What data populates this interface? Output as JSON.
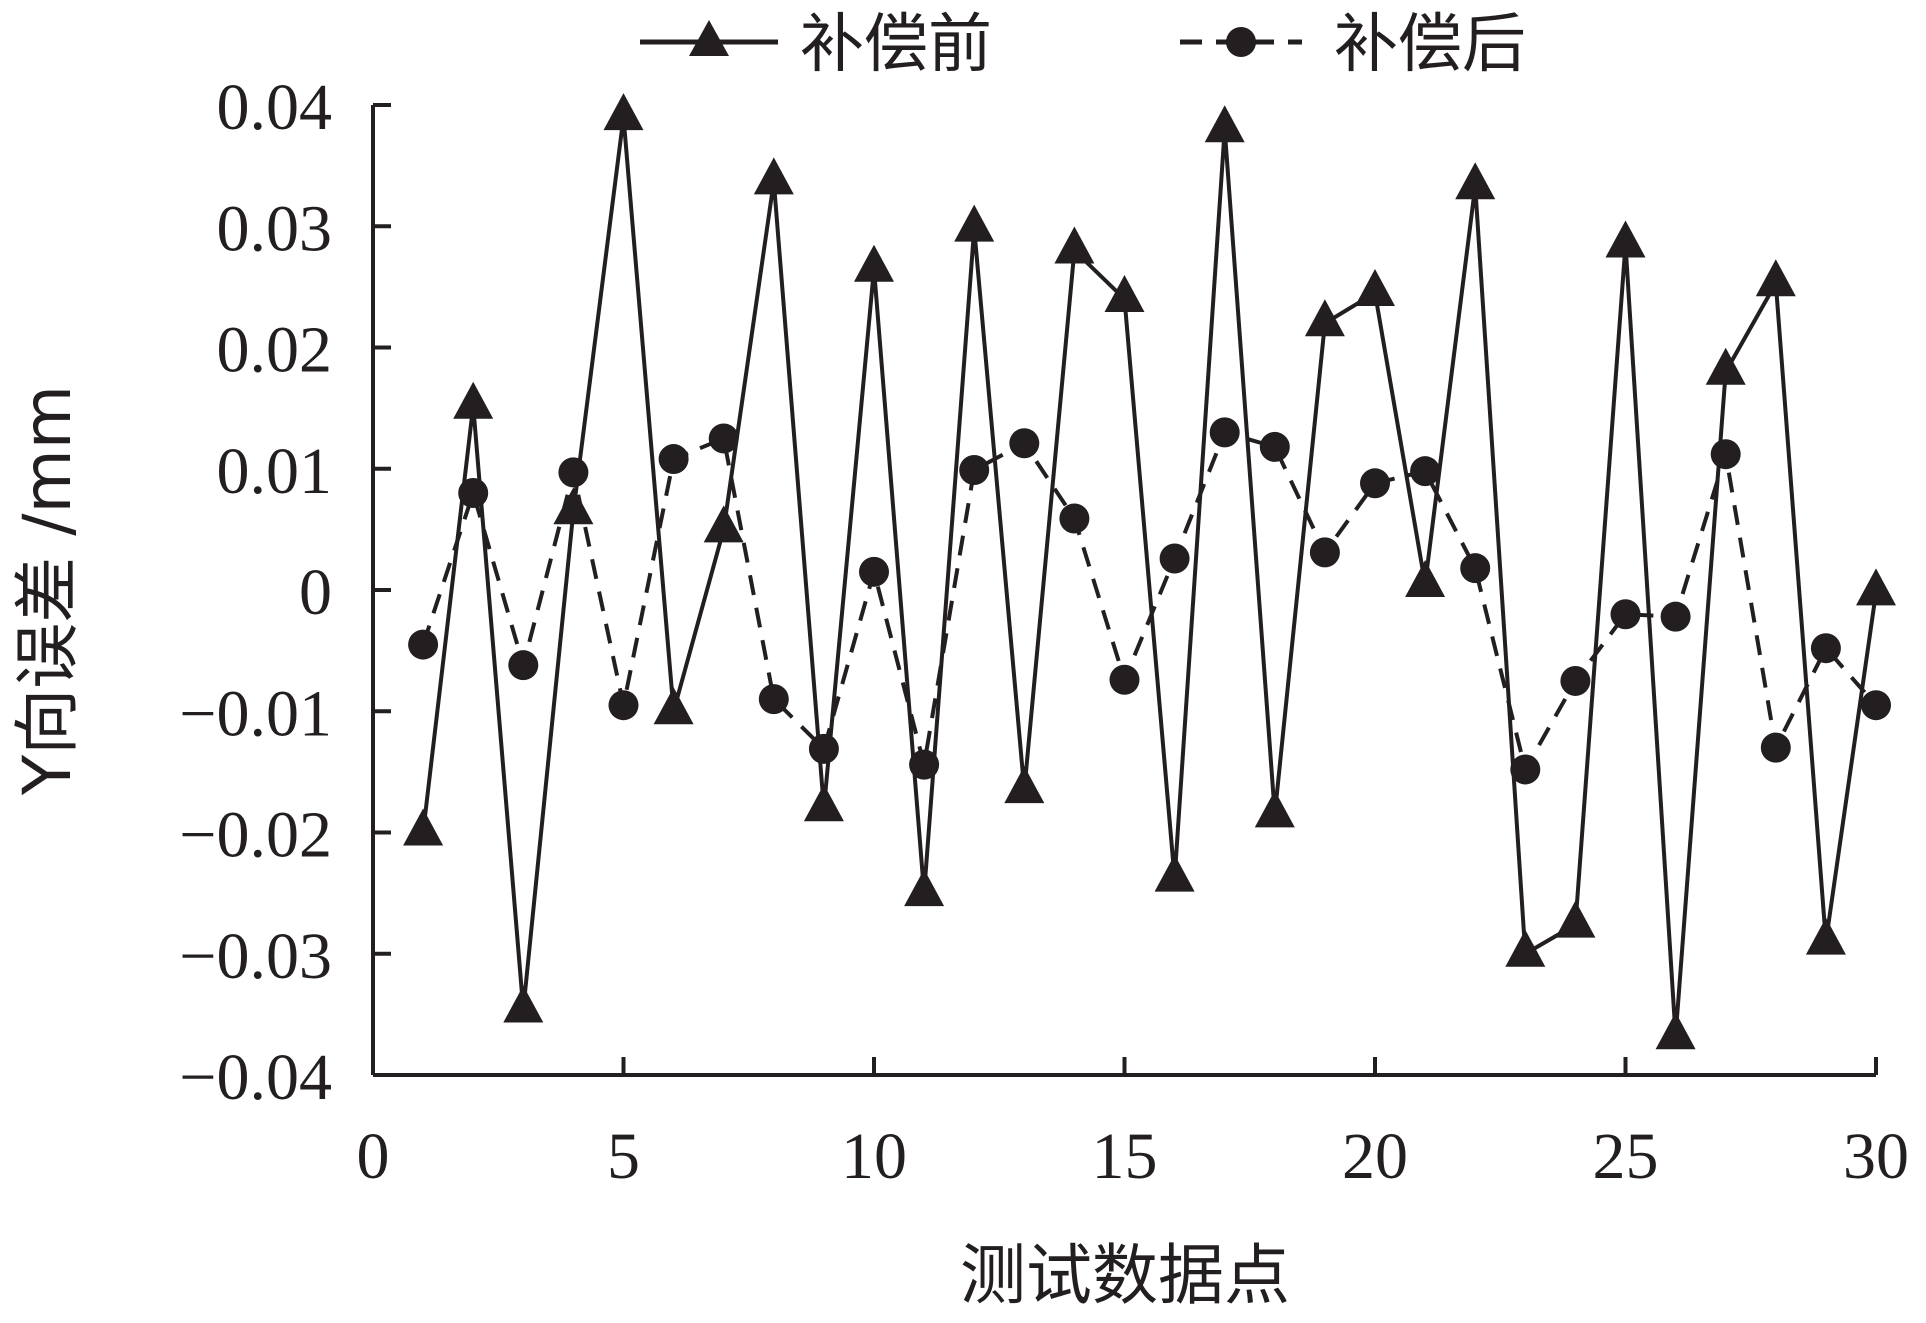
{
  "chart_data": {
    "type": "line",
    "xlabel": "测试数据点",
    "ylabel": "Y向误差 /mm",
    "xlim": [
      0,
      30
    ],
    "ylim": [
      -0.04,
      0.04
    ],
    "x_ticks": [
      0,
      5,
      10,
      15,
      20,
      25,
      30
    ],
    "x_tick_labels": [
      "0",
      "5",
      "10",
      "15",
      "20",
      "25",
      "30"
    ],
    "y_ticks": [
      0.04,
      0.03,
      0.02,
      0.01,
      0,
      -0.01,
      -0.02,
      -0.03,
      -0.04
    ],
    "y_tick_labels": [
      "0.04",
      "0.03",
      "0.02",
      "0.01",
      "0",
      "−0.01",
      "−0.02",
      "−0.03",
      "−0.04"
    ],
    "grid": false,
    "legend_position": "top",
    "x": [
      1,
      2,
      3,
      4,
      5,
      6,
      7,
      8,
      9,
      10,
      11,
      12,
      13,
      14,
      15,
      16,
      17,
      18,
      19,
      20,
      21,
      22,
      23,
      24,
      25,
      26,
      27,
      28,
      29,
      30
    ],
    "series": [
      {
        "name": "补偿前",
        "marker": "triangle",
        "line_style": "solid",
        "color": "#231f20",
        "values": [
          -0.02,
          0.0152,
          -0.0346,
          0.0065,
          0.039,
          -0.01,
          0.005,
          0.0337,
          -0.018,
          0.0265,
          -0.025,
          0.0298,
          -0.0165,
          0.028,
          0.024,
          -0.0238,
          0.038,
          -0.0185,
          0.022,
          0.0245,
          0.0005,
          0.0333,
          -0.03,
          -0.0276,
          0.0285,
          -0.0368,
          0.018,
          0.0253,
          -0.029,
          -0.0002
        ]
      },
      {
        "name": "补偿后",
        "marker": "circle",
        "line_style": "dashed",
        "color": "#231f20",
        "values": [
          -0.0045,
          0.008,
          -0.0062,
          0.0097,
          -0.0095,
          0.0108,
          0.0125,
          -0.009,
          -0.0131,
          0.0015,
          -0.0144,
          0.0099,
          0.0121,
          0.0059,
          -0.0074,
          0.0026,
          0.013,
          0.0118,
          0.0031,
          0.0088,
          0.0098,
          0.0018,
          -0.0148,
          -0.0075,
          -0.002,
          -0.0022,
          0.0112,
          -0.013,
          -0.0048,
          -0.0095
        ]
      }
    ]
  }
}
